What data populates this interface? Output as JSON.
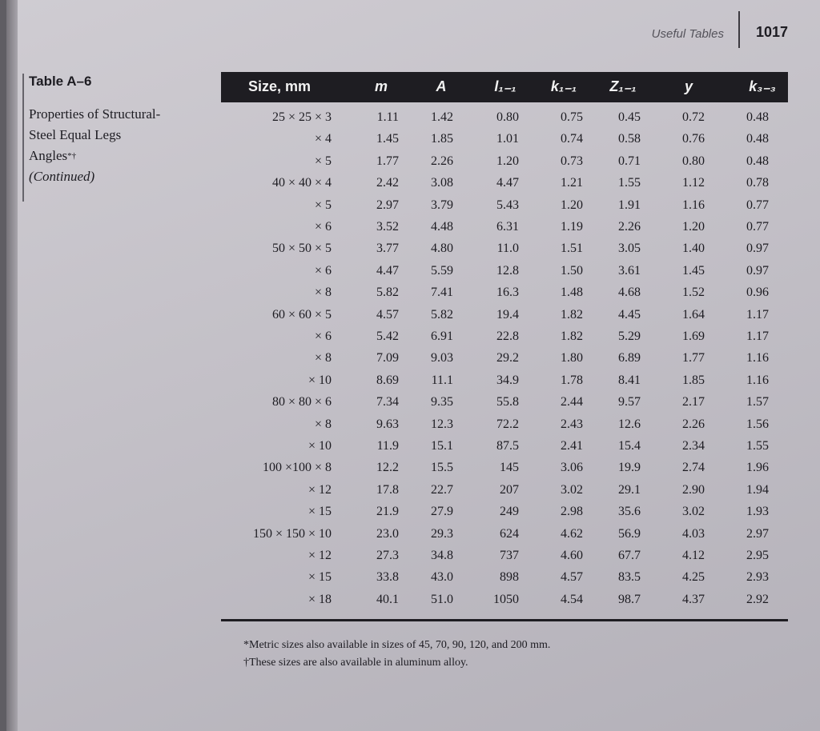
{
  "running_head": "Useful Tables",
  "page_number": "1017",
  "caption": {
    "label": "Table A–6",
    "title_lines": [
      "Properties of Structural-",
      "Steel Equal Legs",
      "Angles"
    ],
    "title_marks": "*†",
    "subtitle": "(Continued)"
  },
  "table": {
    "headers": [
      "Size, mm",
      "m",
      "A",
      "l₁₋₁",
      "k₁₋₁",
      "Z₁₋₁",
      "y",
      "k₃₋₃"
    ],
    "rows": [
      [
        "25 × 25 × 3",
        "1.11",
        "1.42",
        "0.80",
        "0.75",
        "0.45",
        "0.72",
        "0.48"
      ],
      [
        "× 4",
        "1.45",
        "1.85",
        "1.01",
        "0.74",
        "0.58",
        "0.76",
        "0.48"
      ],
      [
        "× 5",
        "1.77",
        "2.26",
        "1.20",
        "0.73",
        "0.71",
        "0.80",
        "0.48"
      ],
      [
        "40 × 40 × 4",
        "2.42",
        "3.08",
        "4.47",
        "1.21",
        "1.55",
        "1.12",
        "0.78"
      ],
      [
        "× 5",
        "2.97",
        "3.79",
        "5.43",
        "1.20",
        "1.91",
        "1.16",
        "0.77"
      ],
      [
        "× 6",
        "3.52",
        "4.48",
        "6.31",
        "1.19",
        "2.26",
        "1.20",
        "0.77"
      ],
      [
        "50 × 50 × 5",
        "3.77",
        "4.80",
        "11.0",
        "1.51",
        "3.05",
        "1.40",
        "0.97"
      ],
      [
        "× 6",
        "4.47",
        "5.59",
        "12.8",
        "1.50",
        "3.61",
        "1.45",
        "0.97"
      ],
      [
        "× 8",
        "5.82",
        "7.41",
        "16.3",
        "1.48",
        "4.68",
        "1.52",
        "0.96"
      ],
      [
        "60 × 60 × 5",
        "4.57",
        "5.82",
        "19.4",
        "1.82",
        "4.45",
        "1.64",
        "1.17"
      ],
      [
        "× 6",
        "5.42",
        "6.91",
        "22.8",
        "1.82",
        "5.29",
        "1.69",
        "1.17"
      ],
      [
        "× 8",
        "7.09",
        "9.03",
        "29.2",
        "1.80",
        "6.89",
        "1.77",
        "1.16"
      ],
      [
        "× 10",
        "8.69",
        "11.1",
        "34.9",
        "1.78",
        "8.41",
        "1.85",
        "1.16"
      ],
      [
        "80 × 80 × 6",
        "7.34",
        "9.35",
        "55.8",
        "2.44",
        "9.57",
        "2.17",
        "1.57"
      ],
      [
        "× 8",
        "9.63",
        "12.3",
        "72.2",
        "2.43",
        "12.6",
        "2.26",
        "1.56"
      ],
      [
        "× 10",
        "11.9",
        "15.1",
        "87.5",
        "2.41",
        "15.4",
        "2.34",
        "1.55"
      ],
      [
        "100 ×100 × 8",
        "12.2",
        "15.5",
        "145",
        "3.06",
        "19.9",
        "2.74",
        "1.96"
      ],
      [
        "× 12",
        "17.8",
        "22.7",
        "207",
        "3.02",
        "29.1",
        "2.90",
        "1.94"
      ],
      [
        "× 15",
        "21.9",
        "27.9",
        "249",
        "2.98",
        "35.6",
        "3.02",
        "1.93"
      ],
      [
        "150 × 150 × 10",
        "23.0",
        "29.3",
        "624",
        "4.62",
        "56.9",
        "4.03",
        "2.97"
      ],
      [
        "× 12",
        "27.3",
        "34.8",
        "737",
        "4.60",
        "67.7",
        "4.12",
        "2.95"
      ],
      [
        "× 15",
        "33.8",
        "43.0",
        "898",
        "4.57",
        "83.5",
        "4.25",
        "2.93"
      ],
      [
        "× 18",
        "40.1",
        "51.0",
        "1050",
        "4.54",
        "98.7",
        "4.37",
        "2.92"
      ]
    ]
  },
  "footnotes": [
    "*Metric sizes also available in sizes of 45, 70, 90, 120, and 200 mm.",
    "†These sizes are also available in aluminum alloy."
  ]
}
